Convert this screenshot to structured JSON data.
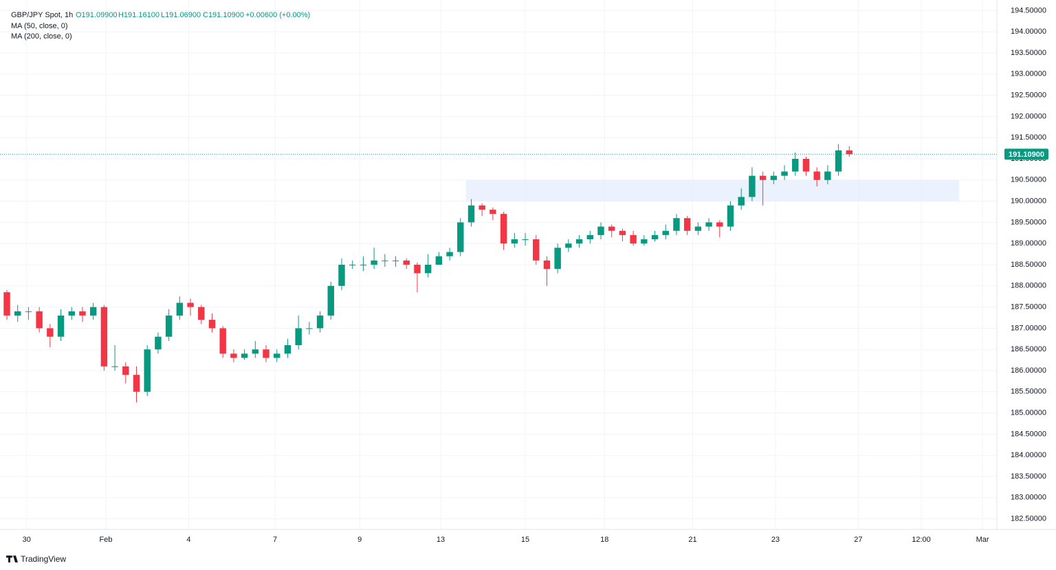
{
  "chart_data": {
    "type": "candlestick",
    "symbol": "GBP/JPY Spot, 1h",
    "ohlc_labels": [
      "O191.09900",
      "H191.16100",
      "L191.06900",
      "C191.10900"
    ],
    "change": "+0.00600 (+0.00%)",
    "indicators": [
      "MA (50, close, 0)",
      "MA (200, close, 0)"
    ],
    "brand": "TradingView",
    "up_color": "#089981",
    "down_color": "#f23645",
    "x": [
      0,
      6,
      12,
      18,
      24,
      30,
      36,
      42,
      48,
      54,
      60,
      66,
      72,
      78,
      84,
      90,
      96,
      102,
      108,
      114,
      120,
      126,
      132,
      138,
      144,
      150,
      156,
      162,
      168,
      174,
      180,
      186,
      192,
      198,
      204,
      210,
      216,
      222,
      228,
      234,
      240,
      246,
      252,
      258,
      264,
      270,
      276,
      282,
      288,
      294,
      300,
      306,
      312,
      318,
      324,
      330,
      336,
      342,
      348,
      354,
      360,
      366,
      372,
      378,
      384,
      390,
      396,
      402,
      408,
      414,
      420,
      426,
      432,
      438,
      444,
      450,
      456,
      462,
      468
    ],
    "open": [
      187.85,
      187.3,
      187.4,
      187.4,
      187.0,
      186.8,
      187.3,
      187.4,
      187.3,
      187.5,
      186.1,
      186.1,
      185.9,
      185.5,
      186.5,
      186.8,
      187.3,
      187.6,
      187.5,
      187.2,
      187.0,
      186.4,
      186.3,
      186.4,
      186.5,
      186.3,
      186.4,
      186.6,
      187.0,
      187.0,
      187.3,
      188.0,
      188.5,
      188.5,
      188.5,
      188.6,
      188.6,
      188.6,
      188.5,
      188.3,
      188.5,
      188.7,
      188.8,
      189.5,
      189.9,
      189.8,
      189.7,
      189.0,
      189.1,
      189.1,
      188.6,
      188.4,
      188.9,
      189.0,
      189.1,
      189.2,
      189.4,
      189.3,
      189.2,
      189.0,
      189.1,
      189.2,
      189.3,
      189.6,
      189.3,
      189.4,
      189.5,
      189.4,
      189.9,
      190.1,
      190.6,
      190.5,
      190.6,
      190.7,
      191.0,
      190.7,
      190.5,
      190.7,
      191.2
    ],
    "high": [
      187.9,
      187.55,
      187.5,
      187.5,
      187.1,
      187.45,
      187.5,
      187.5,
      187.6,
      187.55,
      186.6,
      186.2,
      186.1,
      186.6,
      186.9,
      187.45,
      187.75,
      187.7,
      187.55,
      187.35,
      187.05,
      186.5,
      186.5,
      186.7,
      186.6,
      186.5,
      186.75,
      187.3,
      187.15,
      187.4,
      188.1,
      188.65,
      188.6,
      188.7,
      188.9,
      188.75,
      188.7,
      188.65,
      188.55,
      188.75,
      188.8,
      188.9,
      189.6,
      190.05,
      189.95,
      189.85,
      189.75,
      189.25,
      189.25,
      189.2,
      188.7,
      189.0,
      189.1,
      189.2,
      189.3,
      189.5,
      189.45,
      189.35,
      189.3,
      189.2,
      189.3,
      189.45,
      189.7,
      189.65,
      189.5,
      189.6,
      189.55,
      190.0,
      190.3,
      190.8,
      190.7,
      190.7,
      190.85,
      191.15,
      191.05,
      190.8,
      190.85,
      191.35,
      191.3
    ],
    "low": [
      187.2,
      187.15,
      187.2,
      186.9,
      186.55,
      186.7,
      187.2,
      187.15,
      187.2,
      186.0,
      186.0,
      185.7,
      185.25,
      185.4,
      186.4,
      186.7,
      187.2,
      187.3,
      187.1,
      186.9,
      186.3,
      186.2,
      186.25,
      186.3,
      186.2,
      186.2,
      186.3,
      186.5,
      186.85,
      186.9,
      187.2,
      187.9,
      188.4,
      188.35,
      188.4,
      188.45,
      188.45,
      188.4,
      187.85,
      188.2,
      188.55,
      188.6,
      188.7,
      189.4,
      189.65,
      189.55,
      188.85,
      188.9,
      188.95,
      188.5,
      188.0,
      188.3,
      188.8,
      188.9,
      189.0,
      189.1,
      189.15,
      189.05,
      188.95,
      188.95,
      189.05,
      189.1,
      189.2,
      189.2,
      189.2,
      189.3,
      189.15,
      189.3,
      189.8,
      190.0,
      189.9,
      190.4,
      190.5,
      190.6,
      190.6,
      190.35,
      190.4,
      190.6,
      191.05
    ],
    "close": [
      187.3,
      187.4,
      187.4,
      187.0,
      186.8,
      187.3,
      187.4,
      187.3,
      187.5,
      186.1,
      186.1,
      185.9,
      185.5,
      186.5,
      186.8,
      187.3,
      187.6,
      187.5,
      187.2,
      187.0,
      186.4,
      186.3,
      186.4,
      186.5,
      186.3,
      186.4,
      186.6,
      187.0,
      187.0,
      187.3,
      188.0,
      188.5,
      188.5,
      188.5,
      188.6,
      188.6,
      188.6,
      188.5,
      188.3,
      188.5,
      188.7,
      188.8,
      189.5,
      189.9,
      189.8,
      189.7,
      189.0,
      189.1,
      189.1,
      188.6,
      188.4,
      188.9,
      189.0,
      189.1,
      189.2,
      189.4,
      189.3,
      189.2,
      189.0,
      189.1,
      189.2,
      189.3,
      189.6,
      189.3,
      189.4,
      189.5,
      189.4,
      189.9,
      190.1,
      190.6,
      190.5,
      190.6,
      190.7,
      191.0,
      190.7,
      190.5,
      190.7,
      191.2,
      191.109
    ],
    "last_price": {
      "value": 191.109,
      "label": "191.10900"
    },
    "highlight_band": {
      "xlim": [
        255,
        529
      ],
      "ylim": [
        190.0,
        190.5
      ],
      "color": "#e3edfd"
    },
    "xlim": [
      0,
      550
    ],
    "xticks": [
      {
        "value": 11,
        "label": "30"
      },
      {
        "value": 55,
        "label": "Feb"
      },
      {
        "value": 101,
        "label": "4"
      },
      {
        "value": 149,
        "label": "7"
      },
      {
        "value": 196,
        "label": "9"
      },
      {
        "value": 241,
        "label": "13"
      },
      {
        "value": 288,
        "label": "15"
      },
      {
        "value": 332,
        "label": "18"
      },
      {
        "value": 381,
        "label": "21"
      },
      {
        "value": 427,
        "label": "23"
      },
      {
        "value": 473,
        "label": "27"
      },
      {
        "value": 508,
        "label": "12:00"
      },
      {
        "value": 542,
        "label": "Mar"
      }
    ],
    "ylim": [
      182.25,
      194.75
    ],
    "yticks": [
      {
        "value": 182.5,
        "label": "182.50000"
      },
      {
        "value": 183,
        "label": "183.00000"
      },
      {
        "value": 183.5,
        "label": "183.50000"
      },
      {
        "value": 184,
        "label": "184.00000"
      },
      {
        "value": 184.5,
        "label": "184.50000"
      },
      {
        "value": 185,
        "label": "185.00000"
      },
      {
        "value": 185.5,
        "label": "185.50000"
      },
      {
        "value": 186,
        "label": "186.00000"
      },
      {
        "value": 186.5,
        "label": "186.50000"
      },
      {
        "value": 187,
        "label": "187.00000"
      },
      {
        "value": 187.5,
        "label": "187.50000"
      },
      {
        "value": 188,
        "label": "188.00000"
      },
      {
        "value": 188.5,
        "label": "188.50000"
      },
      {
        "value": 189,
        "label": "189.00000"
      },
      {
        "value": 189.5,
        "label": "189.50000"
      },
      {
        "value": 190,
        "label": "190.00000"
      },
      {
        "value": 190.5,
        "label": "190.50000"
      },
      {
        "value": 191,
        "label": "191.00000"
      },
      {
        "value": 191.5,
        "label": "191.50000"
      },
      {
        "value": 192,
        "label": "192.00000"
      },
      {
        "value": 192.5,
        "label": "192.50000"
      },
      {
        "value": 193,
        "label": "193.00000"
      },
      {
        "value": 193.5,
        "label": "193.50000"
      },
      {
        "value": 194,
        "label": "194.00000"
      },
      {
        "value": 194.5,
        "label": "194.50000"
      }
    ],
    "grid": true
  }
}
